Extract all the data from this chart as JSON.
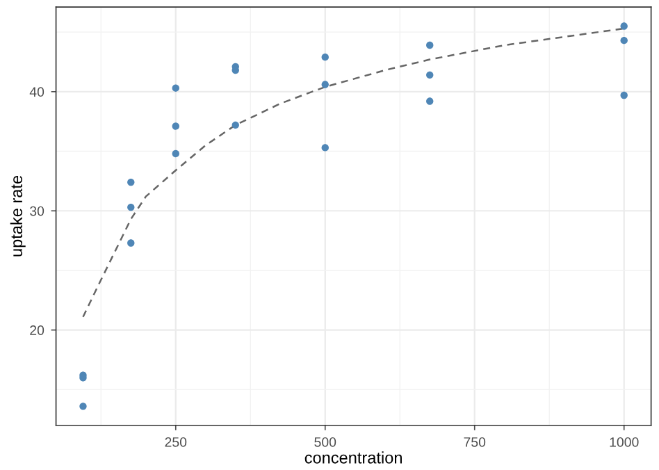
{
  "chart_data": {
    "type": "scatter",
    "xlabel": "concentration",
    "ylabel": "uptake rate",
    "xlim": [
      49.75,
      1045.25
    ],
    "ylim": [
      12.0,
      47.1
    ],
    "xticks": [
      250,
      500,
      750,
      1000
    ],
    "yticks": [
      20,
      30,
      40
    ],
    "grid": true,
    "legend": false,
    "series": [
      {
        "color": "#4f86b6",
        "marker": "circle",
        "x": [
          95,
          95,
          95,
          175,
          175,
          175,
          250,
          250,
          250,
          350,
          350,
          350,
          500,
          500,
          500,
          675,
          675,
          675,
          1000,
          1000,
          1000
        ],
        "values": [
          16.2,
          16.0,
          13.6,
          32.4,
          30.3,
          27.3,
          40.3,
          37.1,
          34.8,
          42.1,
          41.8,
          37.2,
          42.9,
          40.6,
          35.3,
          43.9,
          41.4,
          39.2,
          45.5,
          44.3,
          39.7
        ]
      },
      {
        "type": "line",
        "color": "#666666",
        "line_style": "dashed",
        "marker": "none",
        "x": [
          95,
          121,
          175,
          200,
          250,
          300,
          350,
          425,
          500,
          600,
          675,
          800,
          1000
        ],
        "values": [
          21.1,
          23.8,
          29.3,
          31.2,
          33.4,
          35.5,
          37.2,
          39.0,
          40.4,
          41.8,
          42.7,
          43.9,
          45.3
        ]
      }
    ]
  }
}
